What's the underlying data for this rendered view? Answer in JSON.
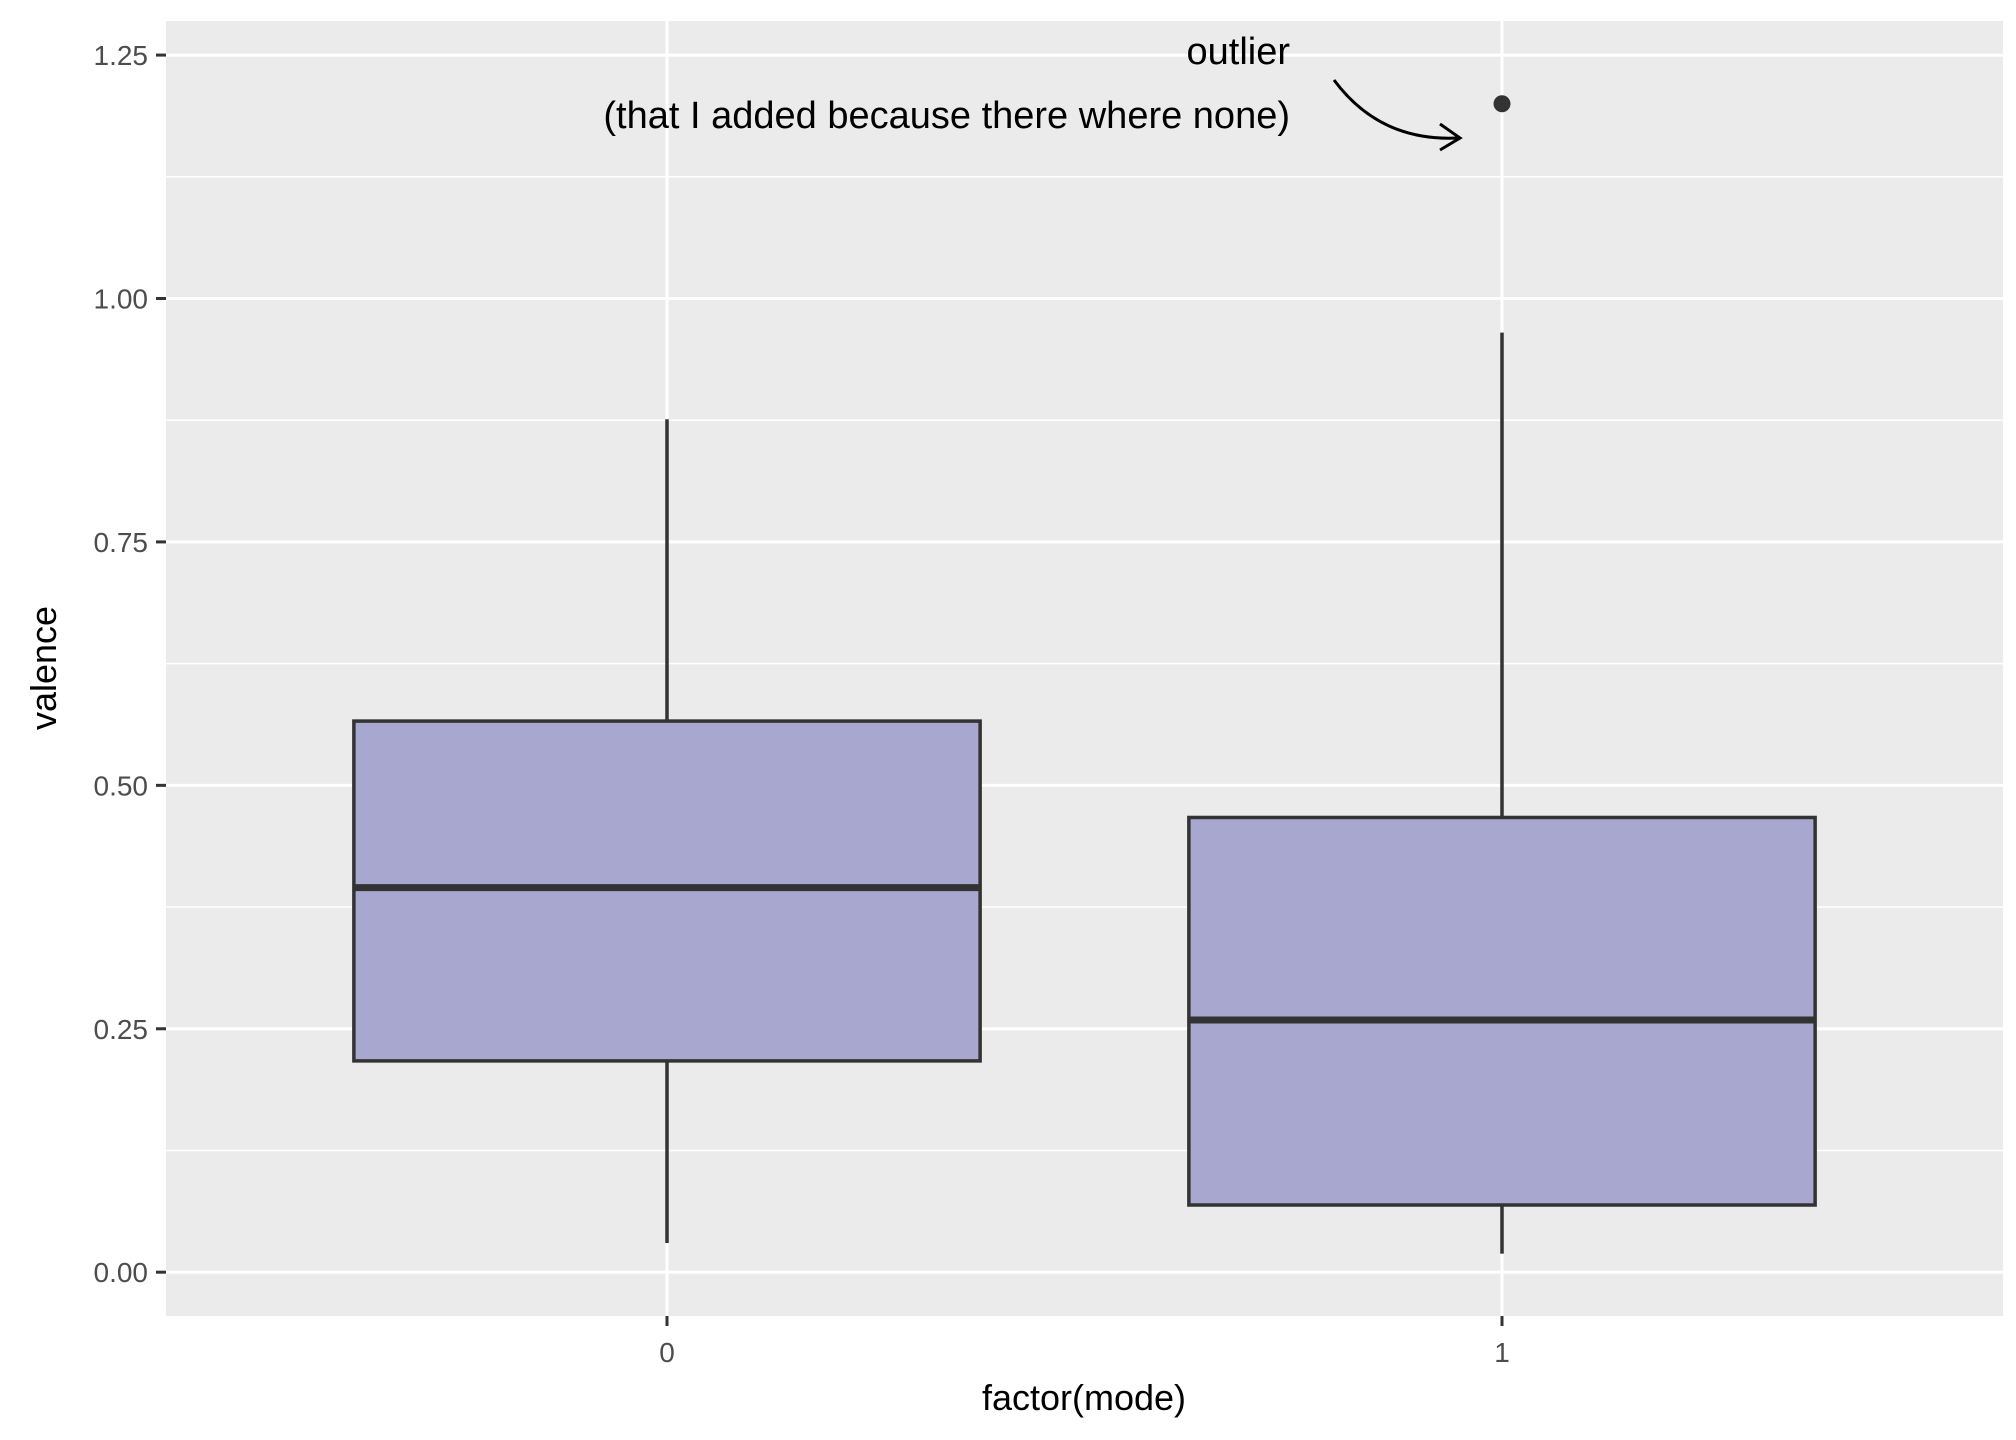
{
  "chart_data": {
    "type": "boxplot",
    "title": "",
    "xlabel": "factor(mode)",
    "ylabel": "valence",
    "categories": [
      "0",
      "1"
    ],
    "ylim": [
      -0.045,
      1.285
    ],
    "yticks": [
      0.0,
      0.25,
      0.5,
      0.75,
      1.0,
      1.25
    ],
    "ytick_labels": [
      "0.00",
      "0.25",
      "0.50",
      "0.75",
      "1.00",
      "1.25"
    ],
    "boxes": [
      {
        "category": "0",
        "whisker_low": 0.03,
        "q1": 0.217,
        "median": 0.395,
        "q3": 0.566,
        "whisker_high": 0.876
      },
      {
        "category": "1",
        "whisker_low": 0.019,
        "q1": 0.069,
        "median": 0.259,
        "q3": 0.467,
        "whisker_high": 0.965
      }
    ],
    "outliers": [
      {
        "category": "1",
        "value": 1.2
      }
    ],
    "annotation": {
      "lines": [
        "outlier",
        "(that I added because there where none)"
      ]
    },
    "colors": {
      "panel_background": "#ebebeb",
      "grid": "#ffffff",
      "box_fill": "#a7a7d0",
      "box_stroke": "#333333",
      "point": "#333333"
    },
    "grid": true,
    "legend": "none"
  }
}
